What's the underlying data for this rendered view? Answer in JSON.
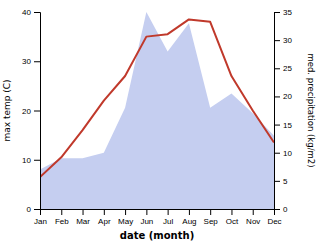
{
  "chart_data": {
    "type": "line",
    "xlabel": "date (month)",
    "ylabel": "max temp (C)",
    "y2label": "med. precipitation (kg/m2)",
    "categories": [
      "Jan",
      "Feb",
      "Mar",
      "Apr",
      "May",
      "Jun",
      "Jul",
      "Aug",
      "Sep",
      "Oct",
      "Nov",
      "Dec"
    ],
    "series": [
      {
        "type": "area",
        "axis": "y2",
        "color": "#c5cef0",
        "values": [
          7.0,
          9.0,
          9.0,
          10.0,
          18.0,
          35.0,
          28.0,
          33.0,
          18.0,
          20.5,
          17.0,
          13.0
        ]
      },
      {
        "type": "line",
        "color": "#c0392b",
        "values": [
          6.5,
          10.5,
          16.0,
          22.0,
          27.0,
          35.0,
          35.5,
          38.5,
          38.0,
          27.0,
          20.0,
          13.5
        ]
      }
    ],
    "ylim": [
      0,
      40
    ],
    "yticks": [
      0,
      10,
      20,
      30,
      40
    ],
    "y2lim": [
      0,
      35
    ],
    "y2ticks": [
      0,
      5,
      10,
      15,
      20,
      25,
      30,
      35
    ],
    "grid": false
  }
}
